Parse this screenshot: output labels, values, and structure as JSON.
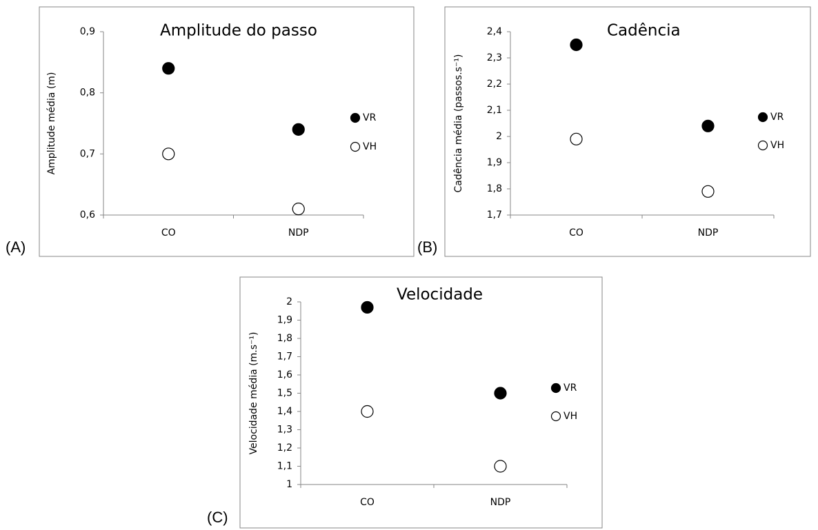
{
  "chart_data": [
    {
      "type": "dot",
      "panel_label": "(A)",
      "title": "Amplitude do passo",
      "y_label": "Amplitude média (m)",
      "categories": [
        "CO",
        "NDP"
      ],
      "series": [
        {
          "name": "VR",
          "color": "#000000",
          "values": [
            0.84,
            0.74
          ]
        },
        {
          "name": "VH",
          "color": "#ffffff",
          "values": [
            0.7,
            0.61
          ]
        }
      ],
      "ylim": [
        0.6,
        0.9
      ],
      "yticks": [
        {
          "value": 0.6,
          "label": "0,6"
        },
        {
          "value": 0.7,
          "label": "0,7"
        },
        {
          "value": 0.8,
          "label": "0,8"
        },
        {
          "value": 0.9,
          "label": "0,9"
        }
      ]
    },
    {
      "type": "dot",
      "panel_label": "(B)",
      "title": "Cadência",
      "y_label": "Cadência média (passos.s⁻¹)",
      "categories": [
        "CO",
        "NDP"
      ],
      "series": [
        {
          "name": "VR",
          "color": "#000000",
          "values": [
            2.35,
            2.04
          ]
        },
        {
          "name": "VH",
          "color": "#ffffff",
          "values": [
            1.99,
            1.79
          ]
        }
      ],
      "ylim": [
        1.7,
        2.4
      ],
      "yticks": [
        {
          "value": 1.7,
          "label": "1,7"
        },
        {
          "value": 1.8,
          "label": "1,8"
        },
        {
          "value": 1.9,
          "label": "1,9"
        },
        2,
        {
          "value": 2.1,
          "label": "2,1"
        },
        {
          "value": 2.2,
          "label": "2,2"
        },
        {
          "value": 2.3,
          "label": "2,3"
        },
        {
          "value": 2.4,
          "label": "2,4"
        }
      ]
    },
    {
      "type": "dot",
      "panel_label": "(C)",
      "title": "Velocidade",
      "y_label": "Velocidade média (m.s⁻¹)",
      "categories": [
        "CO",
        "NDP"
      ],
      "series": [
        {
          "name": "VR",
          "color": "#000000",
          "values": [
            1.97,
            1.5
          ]
        },
        {
          "name": "VH",
          "color": "#ffffff",
          "values": [
            1.4,
            1.1
          ]
        }
      ],
      "ylim": [
        1,
        2
      ],
      "yticks": [
        1,
        {
          "value": 1.1,
          "label": "1,1"
        },
        {
          "value": 1.2,
          "label": "1,2"
        },
        {
          "value": 1.3,
          "label": "1,3"
        },
        {
          "value": 1.4,
          "label": "1,4"
        },
        {
          "value": 1.5,
          "label": "1,5"
        },
        {
          "value": 1.6,
          "label": "1,6"
        },
        {
          "value": 1.7,
          "label": "1,7"
        },
        {
          "value": 1.8,
          "label": "1,8"
        },
        {
          "value": 1.9,
          "label": "1,9"
        },
        2
      ]
    }
  ]
}
